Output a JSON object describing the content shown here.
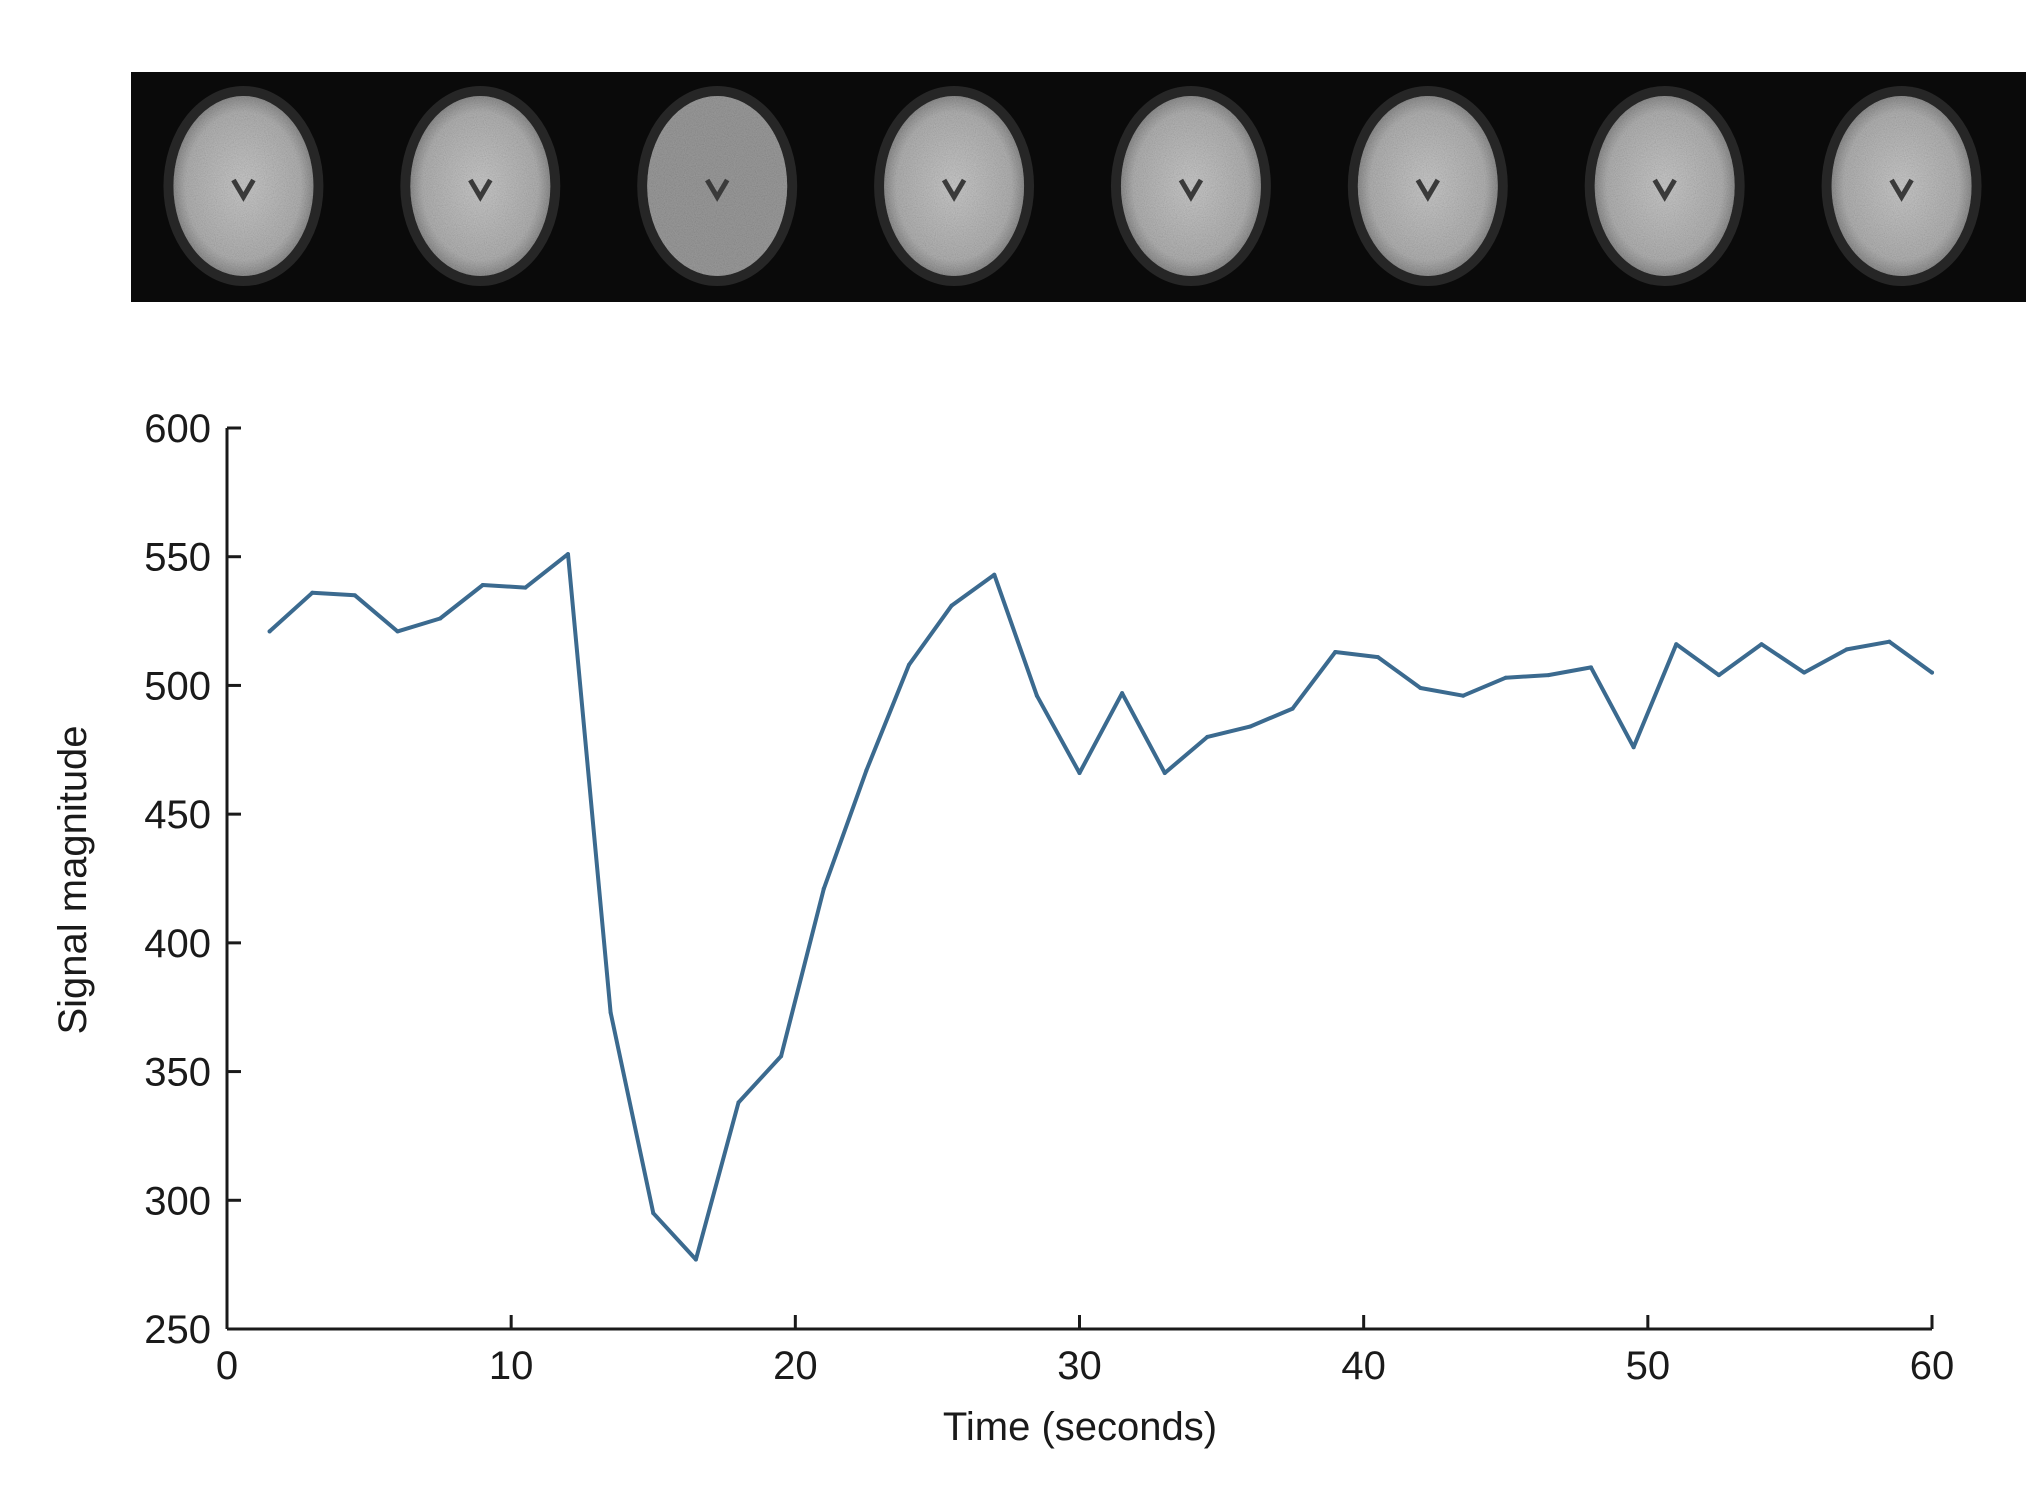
{
  "image_strip": {
    "frames": 8,
    "description_icon": "brain-mri-axial-slice"
  },
  "chart_data": {
    "type": "line",
    "xlabel": "Time (seconds)",
    "ylabel": "Signal magnitude",
    "xlim": [
      0,
      60
    ],
    "ylim": [
      250,
      600
    ],
    "xticks": [
      0,
      10,
      20,
      30,
      40,
      50,
      60
    ],
    "yticks": [
      250,
      300,
      350,
      400,
      450,
      500,
      550,
      600
    ],
    "grid": false,
    "line_color": "#3b6a8f",
    "series": [
      {
        "x": [
          1.5,
          3,
          4.5,
          6,
          7.5,
          9,
          10.5,
          12,
          13.5,
          15,
          16.5,
          18,
          19.5,
          21,
          22.5,
          24,
          25.5,
          27,
          28.5,
          30,
          31.5,
          33,
          34.5,
          36,
          37.5,
          39,
          40.5,
          42,
          43.5,
          45,
          46.5,
          48,
          49.5,
          51,
          52.5,
          54,
          55.5,
          57,
          58.5,
          60
        ],
        "y": [
          521,
          536,
          535,
          521,
          526,
          539,
          538,
          551,
          373,
          295,
          277,
          338,
          356,
          421,
          467,
          508,
          531,
          543,
          496,
          466,
          497,
          466,
          480,
          484,
          491,
          513,
          511,
          499,
          496,
          503,
          504,
          507,
          476,
          516,
          504,
          516,
          505,
          514,
          517,
          505
        ]
      }
    ]
  }
}
